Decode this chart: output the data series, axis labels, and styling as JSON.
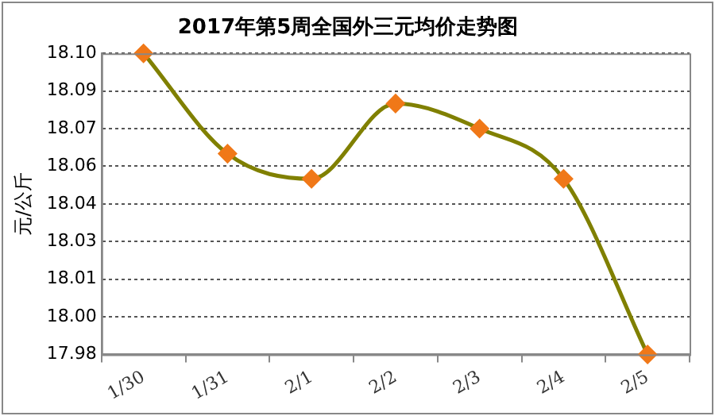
{
  "chart_data": {
    "type": "line",
    "title": "2017年第5周全国外三元均价走势图",
    "ylabel": "元/公斤",
    "categories": [
      "1/30",
      "1/31",
      "2/1",
      "2/2",
      "2/3",
      "2/4",
      "2/5"
    ],
    "series": [
      {
        "color": "#808000",
        "values": [
          18.1,
          18.06,
          18.05,
          18.08,
          18.07,
          18.05,
          17.98
        ]
      }
    ],
    "marker": "diamond",
    "line_style": "solid",
    "ylim": [
      17.98,
      18.1
    ],
    "yticks": [
      {
        "value": 17.98,
        "label": "17.98"
      },
      {
        "value": 17.995,
        "label": "18.00"
      },
      {
        "value": 18.01,
        "label": "18.01"
      },
      {
        "value": 18.025,
        "label": "18.03"
      },
      {
        "value": 18.04,
        "label": "18.04"
      },
      {
        "value": 18.055,
        "label": "18.06"
      },
      {
        "value": 18.07,
        "label": "18.07"
      },
      {
        "value": 18.085,
        "label": "18.09"
      },
      {
        "value": 18.1,
        "label": "18.10"
      }
    ],
    "grid": "y",
    "legend": false
  }
}
